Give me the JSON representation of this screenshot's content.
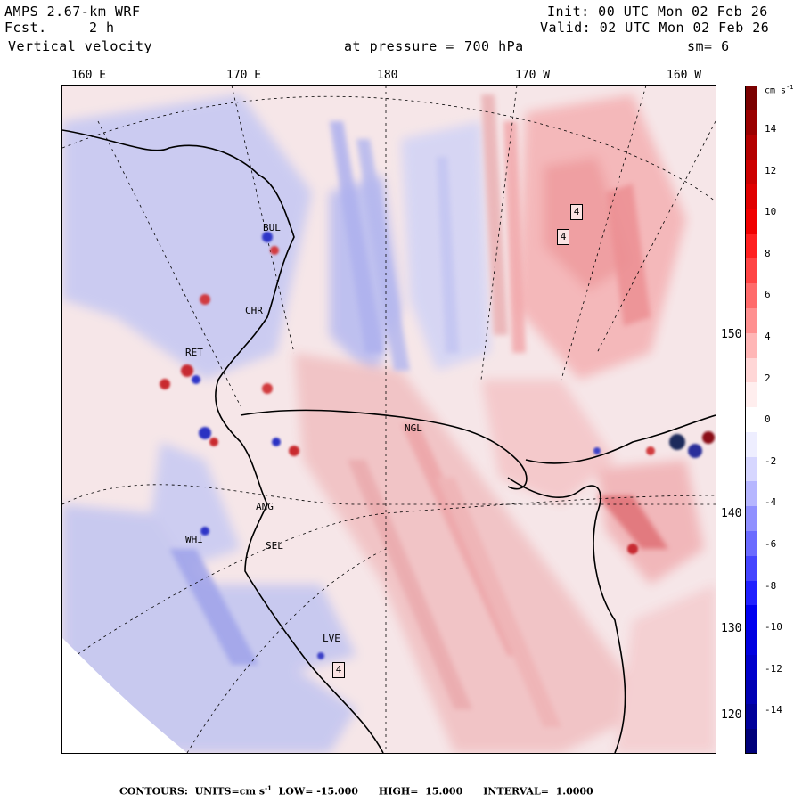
{
  "header": {
    "model": "AMPS 2.67-km WRF",
    "fcst_label": "Fcst.",
    "fcst_value": "2 h",
    "field": "Vertical velocity",
    "level_label": "at pressure =",
    "level_value": "700 hPa",
    "init": "Init: 00 UTC Mon 02 Feb 26",
    "valid": "Valid: 02 UTC Mon 02 Feb 26",
    "smoothing": "sm= 6"
  },
  "longitude_labels": [
    "160 E",
    "170 E",
    "180",
    "170 W",
    "160 W"
  ],
  "latitude_labels": [
    "150 W",
    "140 W",
    "130 W",
    "120 W"
  ],
  "stations": [
    "NGL",
    "ANG",
    "SEL",
    "WHI",
    "CHR",
    "RET",
    "BUL",
    "LVE"
  ],
  "highlow_markers": [
    "4",
    "4",
    "4"
  ],
  "colorbar": {
    "units": "cm s",
    "units_exp": "-1",
    "tick_labels": [
      "14",
      "12",
      "10",
      "8",
      "6",
      "4",
      "2",
      "0",
      "-2",
      "-4",
      "-6",
      "-8",
      "-10",
      "-12",
      "-14"
    ],
    "colors_top_to_bottom": [
      "#7a0000",
      "#9a0000",
      "#b40000",
      "#cc0000",
      "#e00000",
      "#f00000",
      "#ff2020",
      "#ff4545",
      "#ff6b6b",
      "#ff9090",
      "#ffb6b6",
      "#ffd6d6",
      "#ffeeee",
      "#ffffff",
      "#eeeeff",
      "#d6d6ff",
      "#b6b6ff",
      "#9090ff",
      "#6b6bff",
      "#4545ff",
      "#2020ff",
      "#0000f0",
      "#0000e0",
      "#0000cc",
      "#0000b4",
      "#00009a",
      "#00007a"
    ]
  },
  "footer": {
    "contours_label": "CONTOURS:",
    "units_label": "UNITS=cm s",
    "units_exp": "-1",
    "low_label": "LOW=",
    "low_value": "-15.000",
    "high_label": "HIGH=",
    "high_value": "15.000",
    "interval_label": "INTERVAL=",
    "interval_value": "1.0000"
  }
}
